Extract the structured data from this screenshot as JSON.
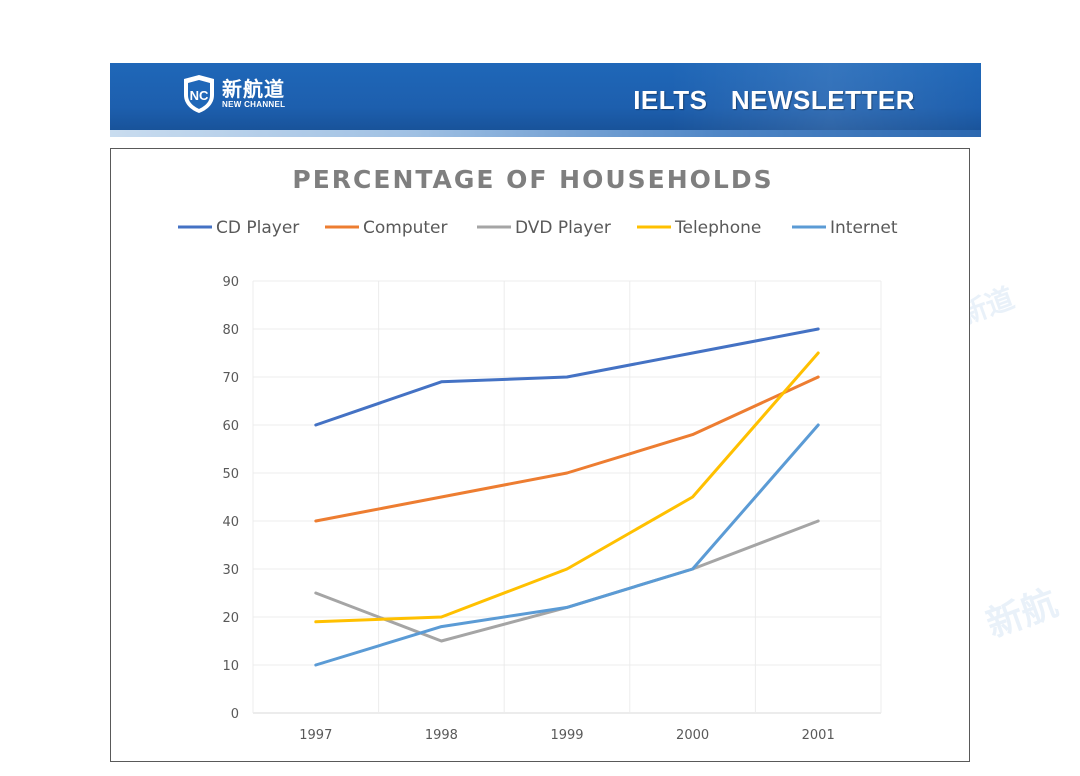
{
  "header": {
    "logo_cn": "新航道",
    "logo_en": "NEW CHANNEL",
    "title": "IELTS  NEWSLETTER",
    "colors": {
      "banner": "#1f67b8",
      "stripe": "#9fc0e3"
    }
  },
  "chart_data": {
    "type": "line",
    "title": "PERCENTAGE OF HOUSEHOLDS",
    "xlabel": "",
    "ylabel": "",
    "categories": [
      "1997",
      "1998",
      "1999",
      "2000",
      "2001"
    ],
    "ylim": [
      0,
      90
    ],
    "yticks": [
      "0",
      "10",
      "20",
      "30",
      "40",
      "50",
      "60",
      "70",
      "80",
      "90"
    ],
    "grid": true,
    "legend_position": "top",
    "series": [
      {
        "name": "CD Player",
        "color": "#4472c4",
        "values": [
          60,
          69,
          70,
          75,
          80
        ]
      },
      {
        "name": "Computer",
        "color": "#ed7d31",
        "values": [
          40,
          45,
          50,
          58,
          70
        ]
      },
      {
        "name": "DVD Player",
        "color": "#a5a5a5",
        "values": [
          25,
          15,
          22,
          30,
          40
        ]
      },
      {
        "name": "Telephone",
        "color": "#ffc000",
        "values": [
          19,
          20,
          30,
          45,
          75
        ]
      },
      {
        "name": "Internet",
        "color": "#5b9bd5",
        "values": [
          10,
          18,
          22,
          30,
          60
        ]
      }
    ]
  }
}
